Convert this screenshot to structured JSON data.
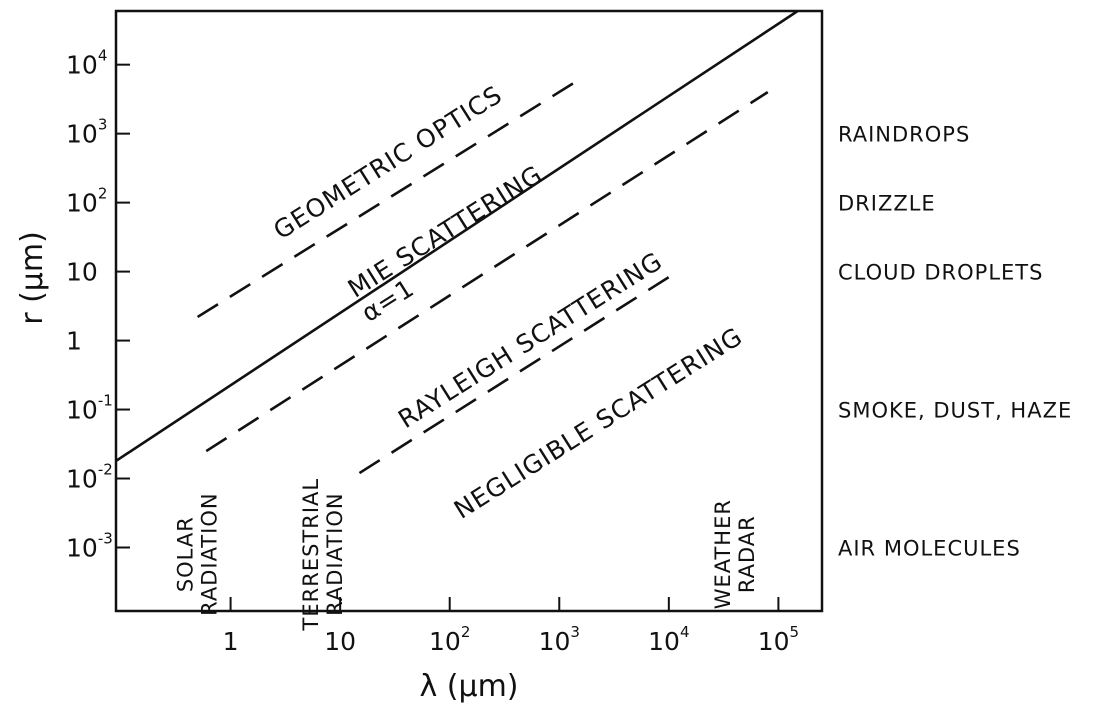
{
  "chart_data": {
    "type": "line",
    "title": "",
    "xlabel": "λ (μm)",
    "ylabel": "r (μm)",
    "x_scale": "log",
    "y_scale": "log",
    "xlim": [
      0.09,
      250000
    ],
    "ylim": [
      0.00012,
      60000
    ],
    "x_ticks": [
      {
        "value": 1,
        "base": "1",
        "exp": ""
      },
      {
        "value": 10,
        "base": "10",
        "exp": ""
      },
      {
        "value": 100,
        "base": "10",
        "exp": "2"
      },
      {
        "value": 1000,
        "base": "10",
        "exp": "3"
      },
      {
        "value": 10000,
        "base": "10",
        "exp": "4"
      },
      {
        "value": 100000,
        "base": "10",
        "exp": "5"
      }
    ],
    "y_ticks": [
      {
        "value": 0.001,
        "base": "10",
        "exp": "-3"
      },
      {
        "value": 0.01,
        "base": "10",
        "exp": "-2"
      },
      {
        "value": 0.1,
        "base": "10",
        "exp": "-1"
      },
      {
        "value": 1,
        "base": "1",
        "exp": ""
      },
      {
        "value": 10,
        "base": "10",
        "exp": ""
      },
      {
        "value": 100,
        "base": "10",
        "exp": "2"
      },
      {
        "value": 1000,
        "base": "10",
        "exp": "3"
      },
      {
        "value": 10000,
        "base": "10",
        "exp": "4"
      }
    ],
    "grid": false,
    "lines": [
      {
        "label": "α=1",
        "style": "solid",
        "points": [
          [
            0.09,
            0.018
          ],
          [
            150000,
            60000
          ]
        ]
      },
      {
        "label": "",
        "style": "dashed",
        "points": [
          [
            0.5,
            2.2
          ],
          [
            1500,
            6000
          ]
        ]
      },
      {
        "label": "",
        "style": "dashed",
        "points": [
          [
            0.6,
            0.025
          ],
          [
            80000,
            4000
          ]
        ]
      },
      {
        "label": "",
        "style": "dashed",
        "points": [
          [
            15,
            0.012
          ],
          [
            12000,
            10
          ]
        ]
      }
    ],
    "region_labels": [
      {
        "text": "GEOMETRIC OPTICS",
        "x": 30,
        "y": 300
      },
      {
        "text": "MIE SCATTERING",
        "x": 100,
        "y": 30
      },
      {
        "text": "α=1",
        "x": 30,
        "y": 3
      },
      {
        "text": "RAYLEIGH SCATTERING",
        "x": 600,
        "y": 0.8
      },
      {
        "text": "NEGLIGIBLE SCATTERING",
        "x": 2500,
        "y": 0.05
      }
    ],
    "band_labels": [
      {
        "lines": [
          "SOLAR",
          "RADIATION"
        ],
        "x": 0.5,
        "y": 0.0008
      },
      {
        "lines": [
          "TERRESTRIAL",
          "RADIATION"
        ],
        "x": 7,
        "y": 0.0008
      },
      {
        "lines": [
          "WEATHER",
          "RADAR"
        ],
        "x": 40000,
        "y": 0.0008
      }
    ],
    "particle_labels": [
      {
        "text": "RAINDROPS",
        "y": 1000
      },
      {
        "text": "DRIZZLE",
        "y": 100
      },
      {
        "text": "CLOUD DROPLETS",
        "y": 10
      },
      {
        "text": "SMOKE, DUST, HAZE",
        "y": 0.1
      },
      {
        "text": "AIR MOLECULES",
        "y": 0.001
      }
    ]
  }
}
